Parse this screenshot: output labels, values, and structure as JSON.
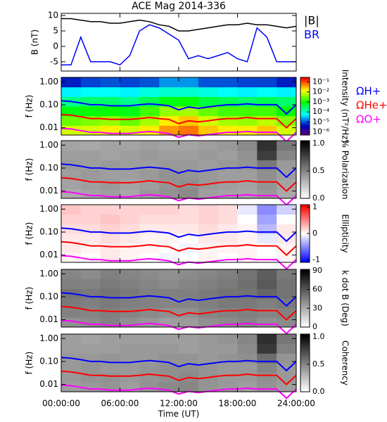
{
  "chart_data": [
    {
      "type": "line",
      "title": "ACE Mag 2014-336",
      "ylabel": "B (nT)",
      "x": [
        0,
        1,
        2,
        3,
        4,
        5,
        6,
        7,
        8,
        9,
        10,
        11,
        12,
        13,
        14,
        15,
        16,
        17,
        18,
        19,
        20,
        21,
        22,
        23,
        24
      ],
      "ylim": [
        -8,
        10.7
      ],
      "yticks": [
        -5,
        0,
        5,
        10
      ],
      "series": [
        {
          "name": "|B|",
          "color": "#000000",
          "values": [
            9,
            9,
            8.5,
            8,
            8,
            7.5,
            7.5,
            8,
            8.5,
            8,
            7,
            6.5,
            5,
            5,
            5.5,
            6,
            6.5,
            7,
            7,
            7.5,
            7,
            7,
            6.5,
            6,
            6.5
          ]
        },
        {
          "name": "BR",
          "color": "#0000ff",
          "values": [
            -6,
            -6,
            3,
            -5,
            -5,
            -5,
            -6,
            -3,
            5,
            7,
            6,
            4,
            2,
            -4,
            -3,
            -4,
            -3,
            -2,
            -4,
            -5,
            6,
            3,
            -5,
            -5,
            -5
          ]
        }
      ]
    },
    {
      "type": "spectrogram",
      "ylabel": "f (Hz)",
      "log": true,
      "ylim": [
        0.0048,
        1.56
      ],
      "yticks": [
        {
          "value": 0.01,
          "label": "0.01"
        },
        {
          "value": 0.1,
          "label": "0.10"
        },
        {
          "value": 1,
          "label": "1.00"
        }
      ],
      "zlabel": "Intensity (nT²/Hz)",
      "zlog": true,
      "zlim": [
        5e-07,
        0.28
      ],
      "colormap": "rainbow",
      "zticks": [
        {
          "value": 1e-06,
          "label": "10⁻⁶"
        },
        {
          "value": 1e-05,
          "label": "10⁻⁵"
        },
        {
          "value": 0.0001,
          "label": "10⁻⁴"
        },
        {
          "value": 0.001,
          "label": "10⁻³"
        },
        {
          "value": 0.01,
          "label": "10⁻²"
        },
        {
          "value": 0.1,
          "label": "10⁻¹"
        }
      ],
      "z": [
        [
          0.01,
          0.01,
          0.02,
          0.01,
          0.02,
          0.05,
          0.08,
          0.03,
          0.02,
          0.02,
          0.03,
          0.01
        ],
        [
          0.003,
          0.004,
          0.005,
          0.003,
          0.006,
          0.02,
          0.03,
          0.01,
          0.006,
          0.005,
          0.008,
          0.004
        ],
        [
          0.0008,
          0.001,
          0.001,
          0.0008,
          0.002,
          0.005,
          0.006,
          0.003,
          0.002,
          0.002,
          0.002,
          0.001
        ],
        [
          0.0002,
          0.0003,
          0.0003,
          0.0002,
          0.0004,
          0.0008,
          0.001,
          0.0005,
          0.0004,
          0.0003,
          0.0004,
          0.0003
        ],
        [
          5e-05,
          6e-05,
          6e-05,
          5e-05,
          8e-05,
          0.0001,
          0.0001,
          8e-05,
          6e-05,
          5e-05,
          6e-05,
          5e-05
        ],
        [
          5e-06,
          8e-06,
          1e-05,
          8e-06,
          1e-05,
          2e-05,
          2e-05,
          1e-05,
          1e-05,
          8e-06,
          8e-06,
          5e-06
        ]
      ],
      "x": [
        0,
        1,
        2,
        3,
        4,
        5,
        6,
        7,
        8,
        9,
        10,
        11,
        12,
        13,
        14,
        15,
        16,
        17,
        18,
        19,
        20,
        21,
        22,
        23,
        24
      ],
      "series": [
        {
          "name": "ΩH+",
          "color": "#0000ff",
          "values": [
            0.15,
            0.14,
            0.12,
            0.1,
            0.1,
            0.09,
            0.09,
            0.09,
            0.1,
            0.11,
            0.1,
            0.09,
            0.06,
            0.08,
            0.07,
            0.08,
            0.09,
            0.1,
            0.1,
            0.11,
            0.1,
            0.1,
            0.1,
            0.04,
            0.1
          ]
        },
        {
          "name": "ΩHe+",
          "color": "#ff0000",
          "values": [
            0.038,
            0.035,
            0.03,
            0.025,
            0.025,
            0.023,
            0.023,
            0.023,
            0.025,
            0.028,
            0.025,
            0.023,
            0.015,
            0.02,
            0.018,
            0.02,
            0.023,
            0.025,
            0.025,
            0.028,
            0.025,
            0.025,
            0.025,
            0.01,
            0.025
          ]
        },
        {
          "name": "ΩO+",
          "color": "#ff00ff",
          "values": [
            0.0094,
            0.0088,
            0.0075,
            0.0063,
            0.0063,
            0.0056,
            0.0056,
            0.0056,
            0.0063,
            0.0069,
            0.0063,
            0.0056,
            0.0038,
            0.005,
            0.0044,
            0.005,
            0.0056,
            0.0063,
            0.0063,
            0.0069,
            0.0063,
            0.0063,
            0.0063,
            0.0025,
            0.0063
          ]
        }
      ]
    },
    {
      "type": "spectrogram",
      "ylabel": "f (Hz)",
      "log": true,
      "ylim": [
        0.0048,
        1.56
      ],
      "yticks": [
        {
          "value": 0.01,
          "label": "0.01"
        },
        {
          "value": 0.1,
          "label": "0.10"
        },
        {
          "value": 1,
          "label": "1.00"
        }
      ],
      "zlabel": "% Polarization",
      "zlim": [
        0,
        1.05
      ],
      "colormap": "gray",
      "zticks": [
        {
          "value": 0,
          "label": "0.0"
        },
        {
          "value": 0.5,
          "label": "0.5"
        },
        {
          "value": 1,
          "label": "1.0"
        }
      ],
      "z": [
        [
          0.35,
          0.38,
          0.4,
          0.36,
          0.42,
          0.45,
          0.48,
          0.4,
          0.38,
          0.37,
          0.42,
          0.36
        ],
        [
          0.38,
          0.4,
          0.42,
          0.38,
          0.4,
          0.44,
          0.46,
          0.42,
          0.4,
          0.38,
          0.44,
          0.38
        ],
        [
          0.4,
          0.42,
          0.4,
          0.4,
          0.42,
          0.45,
          0.44,
          0.42,
          0.4,
          0.4,
          0.46,
          0.4
        ],
        [
          0.42,
          0.4,
          0.42,
          0.4,
          0.4,
          0.42,
          0.42,
          0.4,
          0.42,
          0.44,
          0.55,
          0.42
        ],
        [
          0.4,
          0.4,
          0.38,
          0.4,
          0.42,
          0.4,
          0.4,
          0.42,
          0.4,
          0.45,
          0.8,
          0.5
        ],
        [
          0.38,
          0.36,
          0.38,
          0.38,
          0.4,
          0.38,
          0.38,
          0.4,
          0.42,
          0.48,
          0.85,
          0.55
        ]
      ]
    },
    {
      "type": "spectrogram",
      "ylabel": "f (Hz)",
      "log": true,
      "ylim": [
        0.0048,
        1.56
      ],
      "yticks": [
        {
          "value": 0.01,
          "label": "0.01"
        },
        {
          "value": 0.1,
          "label": "0.10"
        },
        {
          "value": 1,
          "label": "1.00"
        }
      ],
      "zlabel": "Ellipticity",
      "zlim": [
        -1.1,
        1.1
      ],
      "colormap": "bwr",
      "zticks": [
        -1,
        0,
        1
      ],
      "z": [
        [
          0.05,
          0,
          0.1,
          0.05,
          0,
          -0.05,
          0,
          0.05,
          0,
          0.05,
          0,
          0.05
        ],
        [
          0.1,
          0.05,
          0.1,
          0.05,
          0.05,
          0,
          -0.05,
          0.05,
          0.05,
          0.05,
          0,
          0.05
        ],
        [
          0.1,
          0.1,
          0.15,
          0.1,
          0.05,
          0.05,
          0,
          0.1,
          0.1,
          0.05,
          -0.1,
          0.1
        ],
        [
          0.15,
          0.15,
          0.2,
          0.15,
          0.1,
          0.1,
          0.1,
          0.15,
          0.1,
          0.05,
          -0.3,
          0.1
        ],
        [
          0.2,
          0.2,
          0.25,
          0.2,
          0.15,
          0.15,
          0.15,
          0.2,
          0.15,
          0,
          -0.4,
          0
        ],
        [
          0.25,
          0.2,
          0.2,
          0.2,
          0.2,
          0.2,
          0.15,
          0.2,
          0.15,
          -0.1,
          -0.5,
          -0.2
        ]
      ]
    },
    {
      "type": "spectrogram",
      "ylabel": "f (Hz)",
      "log": true,
      "ylim": [
        0.0048,
        1.56
      ],
      "yticks": [
        {
          "value": 0.01,
          "label": "0.01"
        },
        {
          "value": 0.1,
          "label": "0.10"
        },
        {
          "value": 1,
          "label": "1.00"
        }
      ],
      "zlabel": "k dot B (Deg)",
      "zlim": [
        0,
        92
      ],
      "colormap": "gray",
      "zticks": [
        0,
        30,
        60,
        90
      ],
      "z": [
        [
          40,
          42,
          45,
          40,
          38,
          35,
          36,
          40,
          42,
          44,
          40,
          42
        ],
        [
          45,
          44,
          46,
          44,
          42,
          40,
          40,
          44,
          45,
          46,
          44,
          45
        ],
        [
          48,
          46,
          48,
          46,
          45,
          44,
          44,
          46,
          48,
          48,
          46,
          48
        ],
        [
          50,
          48,
          50,
          48,
          46,
          46,
          46,
          48,
          50,
          50,
          55,
          50
        ],
        [
          46,
          45,
          48,
          46,
          44,
          42,
          44,
          46,
          48,
          52,
          60,
          50
        ],
        [
          44,
          42,
          46,
          44,
          42,
          40,
          42,
          44,
          46,
          50,
          58,
          48
        ]
      ]
    },
    {
      "type": "spectrogram",
      "ylabel": "f (Hz)",
      "log": true,
      "ylim": [
        0.0048,
        1.56
      ],
      "yticks": [
        {
          "value": 0.01,
          "label": "0.01"
        },
        {
          "value": 0.1,
          "label": "0.10"
        },
        {
          "value": 1,
          "label": "1.00"
        }
      ],
      "zlabel": "Coherency",
      "zlim": [
        0,
        1.05
      ],
      "colormap": "gray",
      "zticks": [
        {
          "value": 0,
          "label": "0.0"
        },
        {
          "value": 0.5,
          "label": "0.5"
        },
        {
          "value": 1,
          "label": "1.0"
        }
      ],
      "z": [
        [
          0.4,
          0.42,
          0.44,
          0.4,
          0.45,
          0.48,
          0.5,
          0.44,
          0.42,
          0.4,
          0.45,
          0.4
        ],
        [
          0.42,
          0.44,
          0.45,
          0.42,
          0.44,
          0.46,
          0.48,
          0.44,
          0.42,
          0.42,
          0.46,
          0.42
        ],
        [
          0.42,
          0.44,
          0.42,
          0.42,
          0.44,
          0.46,
          0.46,
          0.44,
          0.42,
          0.42,
          0.5,
          0.42
        ],
        [
          0.42,
          0.42,
          0.44,
          0.42,
          0.42,
          0.44,
          0.44,
          0.42,
          0.44,
          0.46,
          0.6,
          0.44
        ],
        [
          0.4,
          0.4,
          0.4,
          0.42,
          0.42,
          0.42,
          0.4,
          0.42,
          0.42,
          0.48,
          0.82,
          0.52
        ],
        [
          0.4,
          0.38,
          0.4,
          0.4,
          0.4,
          0.4,
          0.4,
          0.42,
          0.44,
          0.5,
          0.86,
          0.56
        ]
      ],
      "xlim": [
        0,
        24
      ],
      "xlabel": "Time (UT)",
      "xticks": [
        {
          "value": 0,
          "label": "00:00:00"
        },
        {
          "value": 6,
          "label": "06:00:00"
        },
        {
          "value": 12,
          "label": "12:00:00"
        },
        {
          "value": 18,
          "label": "18:00:00"
        },
        {
          "value": 24,
          "label": "24:00:00"
        }
      ]
    }
  ]
}
